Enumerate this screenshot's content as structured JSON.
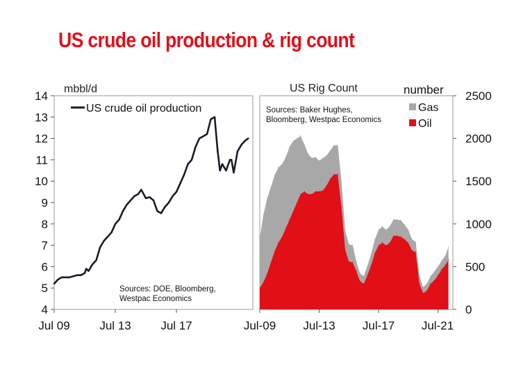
{
  "title": "US crude oil production & rig count",
  "colors": {
    "title": "#e0111b",
    "production_line": "#1a1a2a",
    "oil": "#e01016",
    "gas": "#a8a8a8"
  },
  "chart_data": [
    {
      "type": "line",
      "ylabel": "mbbl/d",
      "ylim": [
        4,
        14
      ],
      "yticks": [
        "4",
        "5",
        "6",
        "7",
        "8",
        "9",
        "10",
        "11",
        "12",
        "13",
        "14"
      ],
      "xlim": [
        2009.5,
        2022.5
      ],
      "xticks": [
        {
          "x": 2009.5,
          "label": "Jul 09"
        },
        {
          "x": 2013.5,
          "label": "Jul 13"
        },
        {
          "x": 2017.5,
          "label": "Jul 17"
        }
      ],
      "grid": false,
      "legend_position": "top-left",
      "annotation": [
        "Sources: DOE, Bloomberg,",
        "Westpac Economics"
      ],
      "series": [
        {
          "name": "US crude oil production",
          "x": [
            2009.5,
            2009.75,
            2010.0,
            2010.25,
            2010.5,
            2010.75,
            2011.0,
            2011.25,
            2011.5,
            2011.6,
            2011.75,
            2012.0,
            2012.25,
            2012.5,
            2012.75,
            2013.0,
            2013.25,
            2013.5,
            2013.75,
            2014.0,
            2014.25,
            2014.5,
            2014.75,
            2015.0,
            2015.2,
            2015.5,
            2015.75,
            2016.0,
            2016.25,
            2016.5,
            2016.75,
            2017.0,
            2017.25,
            2017.5,
            2017.75,
            2018.0,
            2018.25,
            2018.5,
            2018.75,
            2019.0,
            2019.25,
            2019.5,
            2019.75,
            2020.0,
            2020.2,
            2020.35,
            2020.5,
            2020.75,
            2021.0,
            2021.1,
            2021.25,
            2021.5,
            2021.75,
            2022.0,
            2022.2
          ],
          "values": [
            5.2,
            5.4,
            5.5,
            5.5,
            5.5,
            5.55,
            5.6,
            5.6,
            5.7,
            5.9,
            5.8,
            6.1,
            6.3,
            6.9,
            7.2,
            7.4,
            7.6,
            8.0,
            8.2,
            8.6,
            8.9,
            9.1,
            9.3,
            9.4,
            9.6,
            9.2,
            9.25,
            9.1,
            8.6,
            8.5,
            8.8,
            9.0,
            9.3,
            9.5,
            9.9,
            10.3,
            10.8,
            11.0,
            11.6,
            12.0,
            12.1,
            12.2,
            12.9,
            13.0,
            11.4,
            10.5,
            10.8,
            10.5,
            11.0,
            11.0,
            10.4,
            11.4,
            11.7,
            11.9,
            12.0
          ]
        }
      ]
    },
    {
      "type": "area",
      "title": "US Rig Count",
      "ylabel": "number",
      "ylim": [
        0,
        2500
      ],
      "yticks": [
        "0",
        "500",
        "1000",
        "1500",
        "2000",
        "2500"
      ],
      "xlim": [
        2009.5,
        2022.5
      ],
      "xticks": [
        {
          "x": 2009.5,
          "label": "Jul-09"
        },
        {
          "x": 2013.5,
          "label": "Jul-13"
        },
        {
          "x": 2017.5,
          "label": "Jul-17"
        },
        {
          "x": 2021.5,
          "label": "Jul-21"
        }
      ],
      "grid": false,
      "legend_position": "top-right",
      "annotation": [
        "Sources: Baker Hughes,",
        "Bloomberg, Westpac Economics"
      ],
      "stacked": true,
      "x": [
        2009.5,
        2009.75,
        2010.0,
        2010.25,
        2010.5,
        2010.75,
        2011.0,
        2011.25,
        2011.5,
        2011.75,
        2012.0,
        2012.25,
        2012.5,
        2012.75,
        2013.0,
        2013.25,
        2013.5,
        2013.75,
        2014.0,
        2014.25,
        2014.5,
        2014.75,
        2015.0,
        2015.25,
        2015.5,
        2015.75,
        2016.0,
        2016.25,
        2016.5,
        2016.75,
        2017.0,
        2017.25,
        2017.5,
        2017.75,
        2018.0,
        2018.25,
        2018.5,
        2018.75,
        2019.0,
        2019.25,
        2019.5,
        2019.75,
        2020.0,
        2020.25,
        2020.5,
        2020.75,
        2021.0,
        2021.25,
        2021.5,
        2021.75,
        2022.0,
        2022.2
      ],
      "series": [
        {
          "name": "Oil",
          "values": [
            250,
            320,
            420,
            550,
            680,
            780,
            850,
            950,
            1050,
            1150,
            1250,
            1350,
            1380,
            1350,
            1350,
            1380,
            1380,
            1390,
            1450,
            1530,
            1580,
            1580,
            1200,
            700,
            560,
            550,
            450,
            330,
            300,
            400,
            520,
            660,
            750,
            780,
            750,
            780,
            860,
            860,
            850,
            820,
            780,
            690,
            670,
            300,
            190,
            220,
            300,
            340,
            400,
            470,
            520,
            580
          ]
        },
        {
          "name": "Gas",
          "values": [
            580,
            790,
            880,
            880,
            890,
            880,
            850,
            830,
            850,
            820,
            750,
            680,
            550,
            470,
            420,
            400,
            360,
            380,
            350,
            330,
            340,
            340,
            300,
            220,
            200,
            200,
            110,
            90,
            90,
            110,
            130,
            160,
            180,
            190,
            180,
            190,
            190,
            190,
            190,
            170,
            150,
            130,
            120,
            90,
            70,
            80,
            90,
            100,
            100,
            100,
            110,
            150
          ]
        }
      ]
    }
  ]
}
